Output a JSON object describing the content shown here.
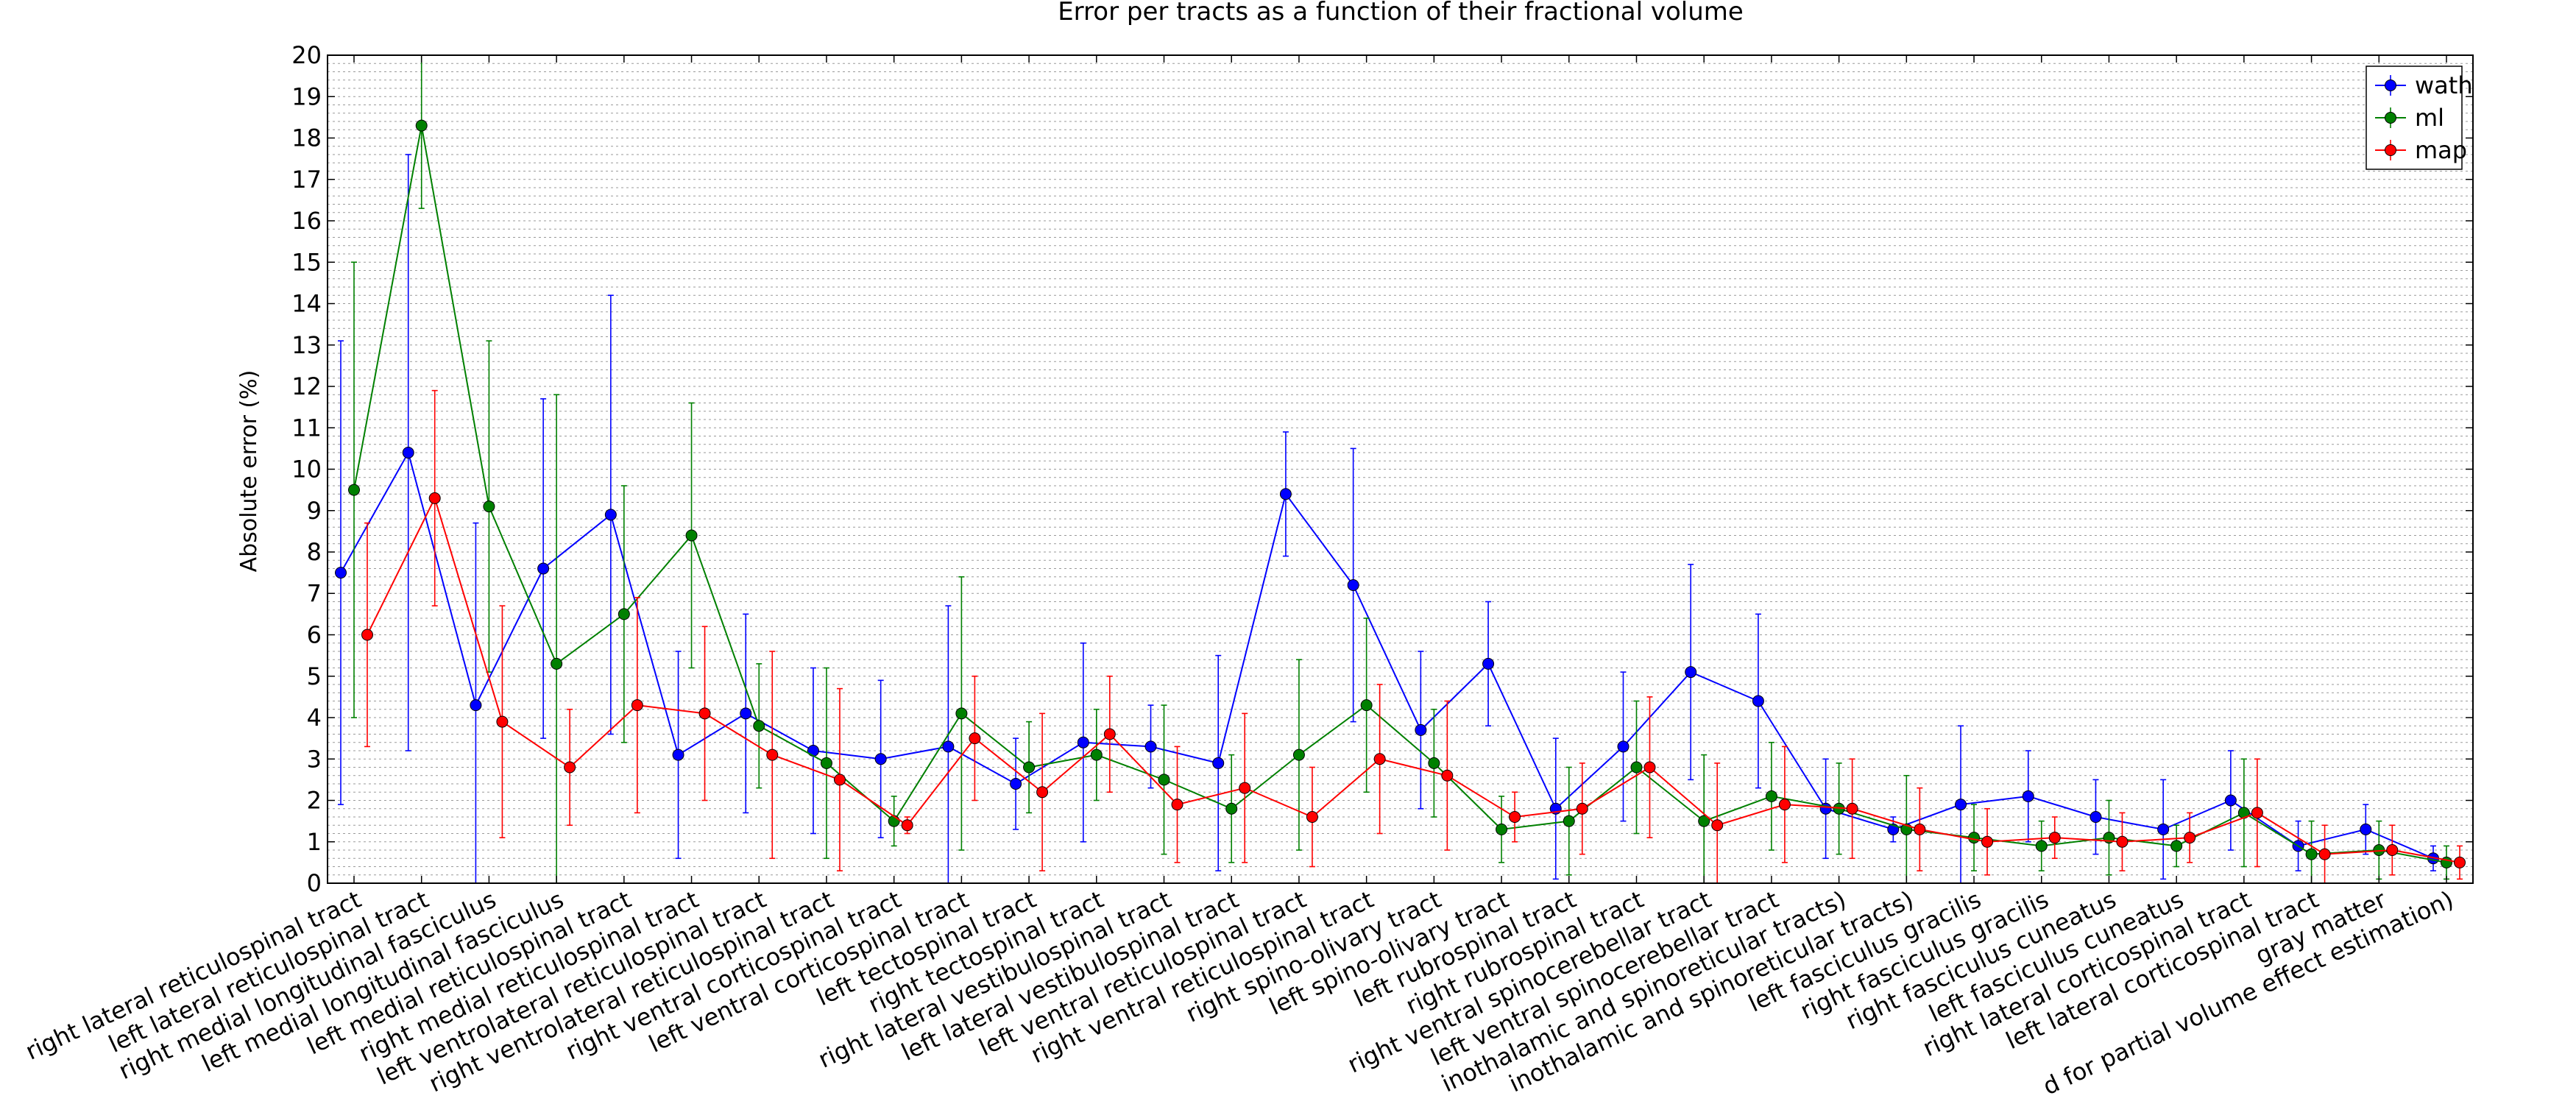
{
  "chart_data": {
    "type": "line",
    "title": "Error per tracts as a function of their fractional volume",
    "ylabel": "Absolute error (%)",
    "xlabel": "",
    "ylim": [
      0,
      20
    ],
    "yticks": [
      0,
      1,
      2,
      3,
      4,
      5,
      6,
      7,
      8,
      9,
      10,
      11,
      12,
      13,
      14,
      15,
      16,
      17,
      18,
      19,
      20
    ],
    "grid": "horizontal dashed",
    "legend_position": "top-right",
    "categories": [
      "right lateral reticulospinal tract",
      "left lateral reticulospinal tract",
      "right medial longitudinal fasciculus",
      "left medial longitudinal fasciculus",
      "left medial reticulospinal tract",
      "right medial reticulospinal tract",
      "left ventrolateral reticulospinal tract",
      "right ventrolateral reticulospinal tract",
      "right ventral corticospinal tract",
      "left ventral corticospinal tract",
      "left tectospinal tract",
      "right tectospinal tract",
      "right lateral vestibulospinal tract",
      "left lateral vestibulospinal tract",
      "left ventral reticulospinal tract",
      "right ventral reticulospinal tract",
      "right spino-olivary tract",
      "left spino-olivary tract",
      "left rubrospinal tract",
      "right rubrospinal tract",
      "right ventral spinocerebellar tract",
      "left ventral spinocerebellar tract",
      "inothalamic and spinoreticular tracts)",
      "inothalamic and spinoreticular tracts)",
      "left fasciculus gracilis",
      "right fasciculus gracilis",
      "right fasciculus cuneatus",
      "left fasciculus cuneatus",
      "right lateral corticospinal tract",
      "left lateral corticospinal tract",
      "gray matter",
      "d for partial volume effect estimation)"
    ],
    "series": [
      {
        "name": "wath",
        "color": "#0000ff",
        "values": [
          7.5,
          10.4,
          4.3,
          7.6,
          8.9,
          3.1,
          4.1,
          3.2,
          3.0,
          3.3,
          2.4,
          3.4,
          3.3,
          2.9,
          9.4,
          7.2,
          3.7,
          5.3,
          1.8,
          3.3,
          5.1,
          4.4,
          1.8,
          1.3,
          1.9,
          2.1,
          1.6,
          1.3,
          2.0,
          0.9,
          1.3,
          0.6
        ],
        "errors": [
          5.6,
          7.2,
          4.4,
          4.1,
          5.3,
          2.5,
          2.4,
          2.0,
          1.9,
          3.4,
          1.1,
          2.4,
          1.0,
          2.6,
          1.5,
          3.3,
          1.9,
          1.5,
          1.7,
          1.8,
          2.6,
          2.1,
          1.2,
          0.3,
          1.9,
          1.1,
          0.9,
          1.2,
          1.2,
          0.6,
          0.6,
          0.3
        ]
      },
      {
        "name": "ml",
        "color": "#008000",
        "values": [
          9.5,
          18.3,
          9.1,
          5.3,
          6.5,
          8.4,
          3.8,
          2.9,
          1.5,
          4.1,
          2.8,
          3.1,
          2.5,
          1.8,
          3.1,
          4.3,
          2.9,
          1.3,
          1.5,
          2.8,
          1.5,
          2.1,
          1.8,
          1.3,
          1.1,
          0.9,
          1.1,
          0.9,
          1.7,
          0.7,
          0.8,
          0.5
        ],
        "errors": [
          5.5,
          2.0,
          4.0,
          6.5,
          3.1,
          3.2,
          1.5,
          2.3,
          0.6,
          3.3,
          1.1,
          1.1,
          1.8,
          1.3,
          2.3,
          2.1,
          1.3,
          0.8,
          1.3,
          1.6,
          1.6,
          1.3,
          1.1,
          1.3,
          0.8,
          0.6,
          0.9,
          0.5,
          1.3,
          0.8,
          0.7,
          0.4
        ]
      },
      {
        "name": "map",
        "color": "#ff0000",
        "values": [
          6.0,
          9.3,
          3.9,
          2.8,
          4.3,
          4.1,
          3.1,
          2.5,
          1.4,
          3.5,
          2.2,
          3.6,
          1.9,
          2.3,
          1.6,
          3.0,
          2.6,
          1.6,
          1.8,
          2.8,
          1.4,
          1.9,
          1.8,
          1.3,
          1.0,
          1.1,
          1.0,
          1.1,
          1.7,
          0.7,
          0.8,
          0.5
        ],
        "errors": [
          2.7,
          2.6,
          2.8,
          1.4,
          2.6,
          2.1,
          2.5,
          2.2,
          0.2,
          1.5,
          1.9,
          1.4,
          1.4,
          1.8,
          1.2,
          1.8,
          1.8,
          0.6,
          1.1,
          1.7,
          1.5,
          1.4,
          1.2,
          1.0,
          0.8,
          0.5,
          0.7,
          0.6,
          1.3,
          0.7,
          0.6,
          0.4
        ]
      }
    ]
  }
}
